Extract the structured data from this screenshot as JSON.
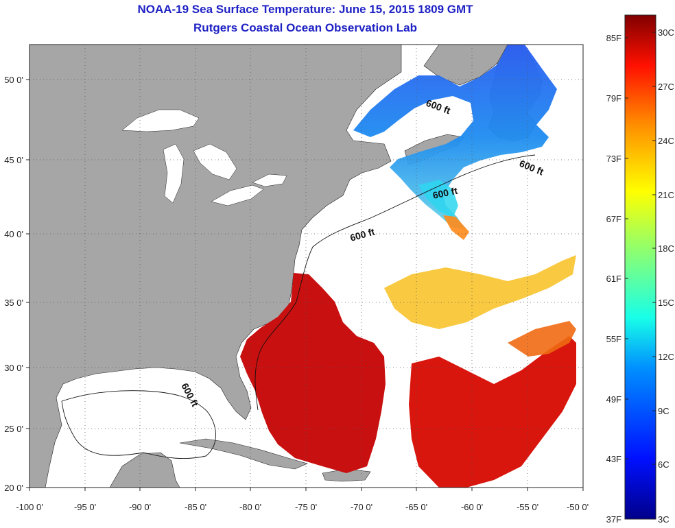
{
  "title": {
    "line1": "NOAA-19 Sea Surface Temperature:  June 15, 2015 1809 GMT",
    "line2": "Rutgers Coastal Ocean Observation Lab"
  },
  "map": {
    "lon_labels": [
      "-100 0'",
      "-95 0'",
      "-90 0'",
      "-85 0'",
      "-80 0'",
      "-75 0'",
      "-70 0'",
      "-65 0'",
      "-60 0'",
      "-55 0'",
      "-50 0'"
    ],
    "lat_labels": [
      "50 0'",
      "45 0'",
      "40 0'",
      "35 0'",
      "30 0'",
      "25 0'",
      "20 0'"
    ],
    "isobath_label": "600 ft",
    "colors": {
      "land": "#a6a6a6",
      "no_data": "#ffffff",
      "cold": "#1d3fd8",
      "warm": "#c81010"
    }
  },
  "colorbar": {
    "fahrenheit": [
      "85F",
      "79F",
      "73F",
      "67F",
      "61F",
      "55F",
      "49F",
      "43F",
      "37F"
    ],
    "celsius": [
      "30C",
      "27C",
      "24C",
      "21C",
      "18C",
      "15C",
      "12C",
      "9C",
      "6C",
      "3C"
    ]
  }
}
